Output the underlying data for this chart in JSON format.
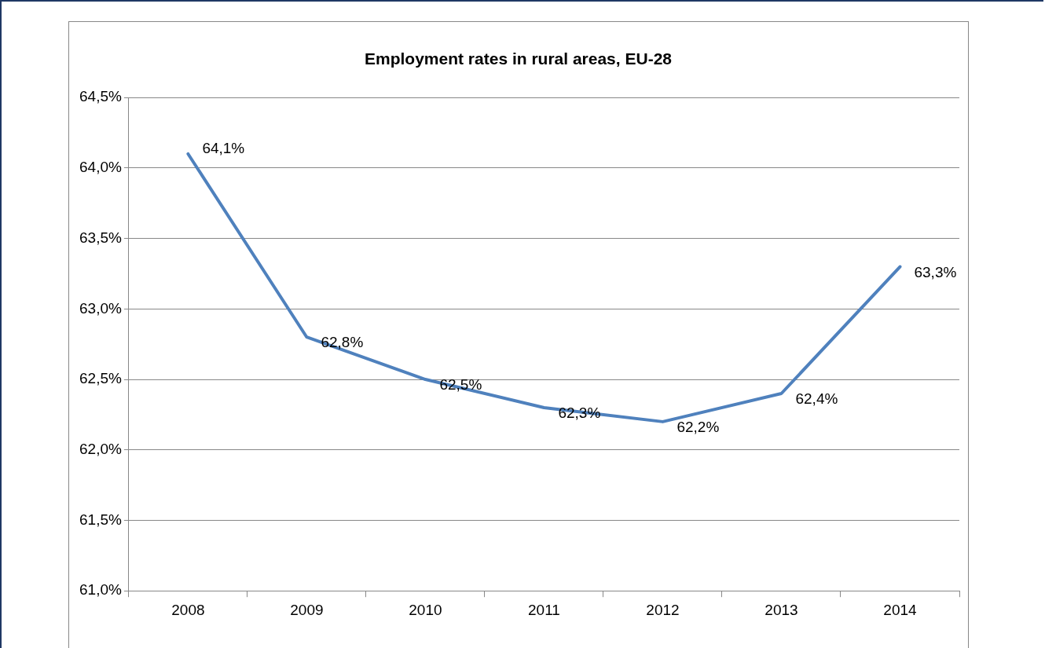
{
  "chart_data": {
    "type": "line",
    "title": "Employment rates in rural areas, EU-28",
    "categories": [
      "2008",
      "2009",
      "2010",
      "2011",
      "2012",
      "2013",
      "2014"
    ],
    "series": [
      {
        "color": "#4f81bd",
        "values": [
          64.1,
          62.8,
          62.5,
          62.3,
          62.2,
          62.4,
          63.3
        ],
        "value_labels": [
          "64,1%",
          "62,8%",
          "62,5%",
          "62,3%",
          "62,2%",
          "62,4%",
          "63,3%"
        ]
      }
    ],
    "ylim": [
      61.0,
      64.5
    ],
    "yticks": [
      {
        "value": 61.0,
        "label": "61,0%"
      },
      {
        "value": 61.5,
        "label": "61,5%"
      },
      {
        "value": 62.0,
        "label": "62,0%"
      },
      {
        "value": 62.5,
        "label": "62,5%"
      },
      {
        "value": 63.0,
        "label": "63,0%"
      },
      {
        "value": 63.5,
        "label": "63,5%"
      },
      {
        "value": 64.0,
        "label": "64,0%"
      },
      {
        "value": 64.5,
        "label": "64,5%"
      }
    ],
    "grid": "y",
    "legend": false,
    "marker": "none",
    "line_style": "solid"
  }
}
